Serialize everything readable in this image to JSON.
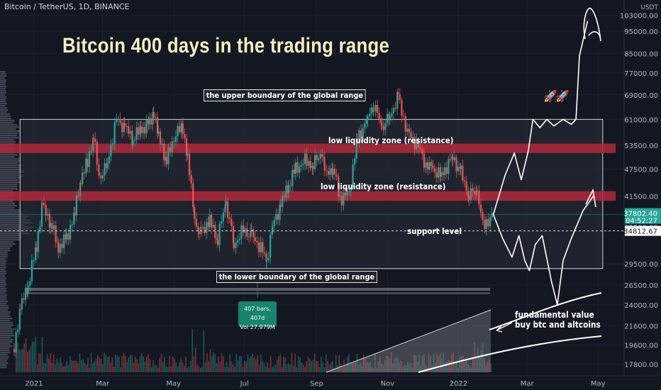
{
  "symbol_title": "Bitcoin / TetherUS, 1D, BINANCE",
  "title": "Bitcoin 400 days in the trading range",
  "labels": {
    "upper": "the upper boundary of the global range",
    "lower": "the lower boundary of the global range",
    "zone1": "low liquidity zone (resistance)",
    "zone2": "low liquidity zone (resistance)",
    "support": "support level",
    "fundamental_line1": "fundamental value",
    "fundamental_line2": "buy btc and altcoins"
  },
  "badge": {
    "line1": "407 bars, 407d",
    "line2": "Vol 27.979M"
  },
  "price_axis": {
    "currency": "USDT",
    "ticks": [
      "103000.00",
      "95000.00",
      "85000.00",
      "77000.00",
      "69000.00",
      "61000.00",
      "53500.00",
      "47500.00",
      "41500.00",
      "35500.00",
      "29500.00",
      "26500.00",
      "24000.00",
      "21600.00",
      "19600.00",
      "17800.00"
    ]
  },
  "time_axis": [
    "2021",
    "Mar",
    "May",
    "Jul",
    "Sep",
    "Nov",
    "2022",
    "Mar",
    "May"
  ],
  "price_tags": {
    "current": "37802.40",
    "countdown": "04:52:27",
    "support": "34812.67"
  },
  "colors": {
    "background": "#131722",
    "up": "#26a69a",
    "down": "#ef5350",
    "zone": "#b2283a",
    "range_box": "#2a2e39",
    "title": "#f5f0be"
  },
  "chart_data": {
    "type": "candlestick",
    "title": "Bitcoin 400 days in the trading range",
    "symbol": "BTCUSDT",
    "interval": "1D",
    "exchange": "BINANCE",
    "y_scale": "log",
    "ylim": [
      16500,
      110000
    ],
    "x_range": [
      "2020-12-15",
      "2022-05-10"
    ],
    "range_box": {
      "start": "2020-12-20",
      "end": "2022-05-05",
      "top": 61000,
      "bottom": 28800
    },
    "zones": [
      {
        "label": "low liquidity zone (resistance)",
        "low": 51500,
        "high": 54000
      },
      {
        "label": "low liquidity zone (resistance)",
        "low": 40500,
        "high": 42500
      }
    ],
    "support_level": 34812.67,
    "current_price": 37802.4,
    "price_series": [
      [
        "2020-12-15",
        19200
      ],
      [
        "2020-12-20",
        23500
      ],
      [
        "2020-12-27",
        26500
      ],
      [
        "2021-01-03",
        32000
      ],
      [
        "2021-01-08",
        39500
      ],
      [
        "2021-01-15",
        36500
      ],
      [
        "2021-01-22",
        32000
      ],
      [
        "2021-01-29",
        33500
      ],
      [
        "2021-02-05",
        38000
      ],
      [
        "2021-02-10",
        45000
      ],
      [
        "2021-02-16",
        49000
      ],
      [
        "2021-02-21",
        56000
      ],
      [
        "2021-02-26",
        45500
      ],
      [
        "2021-03-05",
        48500
      ],
      [
        "2021-03-13",
        61000
      ],
      [
        "2021-03-20",
        58500
      ],
      [
        "2021-03-27",
        55500
      ],
      [
        "2021-04-03",
        58000
      ],
      [
        "2021-04-10",
        59500
      ],
      [
        "2021-04-14",
        63500
      ],
      [
        "2021-04-18",
        56000
      ],
      [
        "2021-04-25",
        49500
      ],
      [
        "2021-05-03",
        57000
      ],
      [
        "2021-05-09",
        58500
      ],
      [
        "2021-05-13",
        50000
      ],
      [
        "2021-05-19",
        37000
      ],
      [
        "2021-05-23",
        34500
      ],
      [
        "2021-06-01",
        36500
      ],
      [
        "2021-06-08",
        33500
      ],
      [
        "2021-06-15",
        40000
      ],
      [
        "2021-06-22",
        32500
      ],
      [
        "2021-06-30",
        35000
      ],
      [
        "2021-07-07",
        34000
      ],
      [
        "2021-07-15",
        32000
      ],
      [
        "2021-07-20",
        29800
      ],
      [
        "2021-07-25",
        35500
      ],
      [
        "2021-08-01",
        39500
      ],
      [
        "2021-08-08",
        44000
      ],
      [
        "2021-08-14",
        47500
      ],
      [
        "2021-08-22",
        49500
      ],
      [
        "2021-08-29",
        48500
      ],
      [
        "2021-09-06",
        52000
      ],
      [
        "2021-09-08",
        46000
      ],
      [
        "2021-09-15",
        48000
      ],
      [
        "2021-09-21",
        41000
      ],
      [
        "2021-09-29",
        42000
      ],
      [
        "2021-10-06",
        55000
      ],
      [
        "2021-10-15",
        61500
      ],
      [
        "2021-10-20",
        66000
      ],
      [
        "2021-10-27",
        58500
      ],
      [
        "2021-11-03",
        62000
      ],
      [
        "2021-11-10",
        68000
      ],
      [
        "2021-11-18",
        57000
      ],
      [
        "2021-11-26",
        54000
      ],
      [
        "2021-12-04",
        48500
      ],
      [
        "2021-12-10",
        47500
      ],
      [
        "2021-12-17",
        46000
      ],
      [
        "2021-12-27",
        50500
      ],
      [
        "2022-01-03",
        46500
      ],
      [
        "2022-01-10",
        41800
      ],
      [
        "2022-01-17",
        42500
      ],
      [
        "2022-01-22",
        35500
      ],
      [
        "2022-01-25",
        36500
      ],
      [
        "2022-01-31",
        37500
      ]
    ],
    "forecast_up": [
      [
        "2022-01-31",
        37800
      ],
      [
        "2022-02-10",
        46000
      ],
      [
        "2022-02-18",
        51500
      ],
      [
        "2022-02-24",
        45000
      ],
      [
        "2022-03-02",
        52000
      ],
      [
        "2022-03-06",
        61000
      ],
      [
        "2022-03-12",
        58500
      ],
      [
        "2022-03-18",
        61000
      ],
      [
        "2022-03-24",
        59000
      ],
      [
        "2022-04-01",
        61000
      ],
      [
        "2022-04-08",
        59500
      ],
      [
        "2022-04-12",
        61000
      ],
      [
        "2022-04-15",
        84000
      ],
      [
        "2022-04-22",
        100000
      ]
    ],
    "forecast_down": [
      [
        "2022-01-31",
        37800
      ],
      [
        "2022-02-08",
        33500
      ],
      [
        "2022-02-16",
        30500
      ],
      [
        "2022-02-22",
        34000
      ],
      [
        "2022-02-27",
        30000
      ],
      [
        "2022-03-03",
        28500
      ],
      [
        "2022-03-08",
        32500
      ],
      [
        "2022-03-14",
        34000
      ],
      [
        "2022-03-22",
        27000
      ],
      [
        "2022-03-27",
        24000
      ],
      [
        "2022-04-01",
        30000
      ],
      [
        "2022-04-08",
        33500
      ],
      [
        "2022-04-18",
        38500
      ],
      [
        "2022-04-27",
        41500
      ]
    ]
  }
}
